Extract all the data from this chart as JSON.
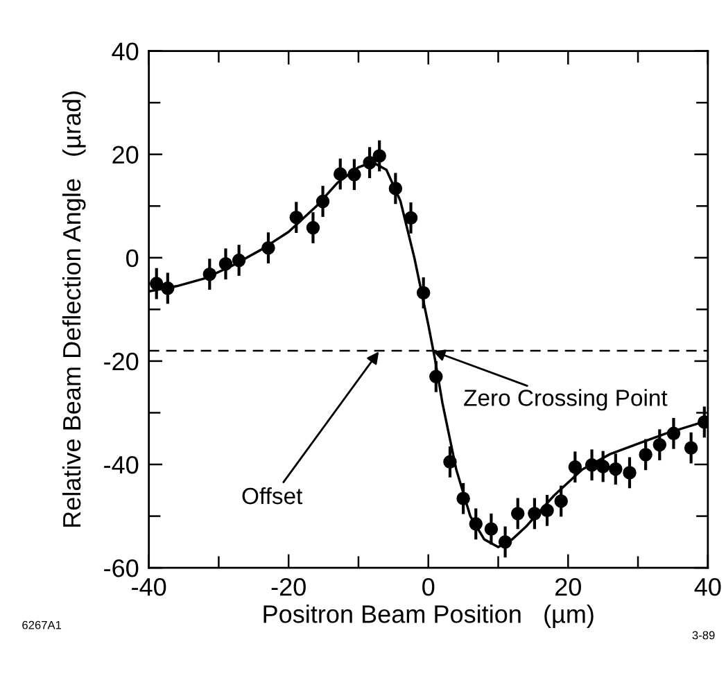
{
  "chart_data": {
    "type": "scatter",
    "xlabel": "Positron Beam Position   (µm)",
    "ylabel": "Relative Beam Deflection Angle   (µrad)",
    "xlim": [
      -40,
      40
    ],
    "ylim": [
      -60,
      40
    ],
    "xticks": [
      -40,
      -20,
      0,
      20,
      40
    ],
    "yticks": [
      -60,
      -40,
      -20,
      0,
      20,
      40
    ],
    "grid": false,
    "marker": "circle",
    "series": [
      {
        "type": "scatter",
        "color": "#000000",
        "x": [
          -38.9,
          -37.3,
          -31.3,
          -29.0,
          -27.1,
          -22.9,
          -18.9,
          -16.5,
          -15.1,
          -12.6,
          -10.6,
          -8.4,
          -7.0,
          -4.7,
          -2.5,
          -0.7,
          1.1,
          3.1,
          5.0,
          6.8,
          9.0,
          11.0,
          12.8,
          15.2,
          17.0,
          19.0,
          21.0,
          23.4,
          25.0,
          26.8,
          28.8,
          31.1,
          33.1,
          35.1,
          37.6,
          39.5
        ],
        "values": [
          -5.0,
          -5.9,
          -3.2,
          -1.2,
          -0.5,
          1.9,
          7.8,
          5.8,
          10.9,
          16.2,
          16.1,
          18.4,
          19.7,
          13.4,
          7.7,
          -6.8,
          -23.0,
          -39.5,
          -46.6,
          -51.5,
          -52.5,
          -55.0,
          -49.5,
          -49.5,
          -48.9,
          -47.1,
          -40.5,
          -40.1,
          -40.4,
          -40.9,
          -41.6,
          -38.1,
          -36.2,
          -34.0,
          -36.8,
          -31.8
        ],
        "errors": [
          3,
          3,
          3,
          3,
          3,
          3,
          3,
          3,
          3,
          3,
          3,
          3,
          3,
          3,
          3,
          3,
          3,
          3,
          3,
          3,
          3,
          3,
          3,
          3,
          3,
          3,
          3,
          3,
          3,
          3,
          3,
          3,
          3,
          3,
          3,
          3
        ]
      },
      {
        "type": "line",
        "color": "#000000",
        "line_style": "solid",
        "marker": "none",
        "x": [
          -40,
          -36,
          -32,
          -28,
          -24,
          -20,
          -16,
          -13,
          -10,
          -8,
          -6,
          -4,
          -2,
          0,
          1,
          2,
          4,
          6,
          8,
          10,
          12,
          14,
          18,
          22,
          26,
          30,
          34,
          40
        ],
        "values": [
          -6.5,
          -5.5,
          -4,
          -1.5,
          1.5,
          5,
          10,
          14.5,
          17.5,
          18.5,
          17,
          11,
          0,
          -13,
          -20,
          -28,
          -41,
          -50,
          -54.5,
          -56,
          -54.5,
          -52,
          -46,
          -41,
          -38,
          -36,
          -34,
          -31.5
        ]
      }
    ],
    "ref_lines": [
      {
        "axis": "y",
        "value": -18,
        "label": null,
        "color": "#000000",
        "line_style": "dashed"
      }
    ],
    "annotations": [
      {
        "text": "Zero Crossing Point",
        "x": 0.5,
        "y": -18
      },
      {
        "text": "Offset",
        "x": -7,
        "y": -18
      },
      "6267A1",
      "3-89"
    ]
  }
}
